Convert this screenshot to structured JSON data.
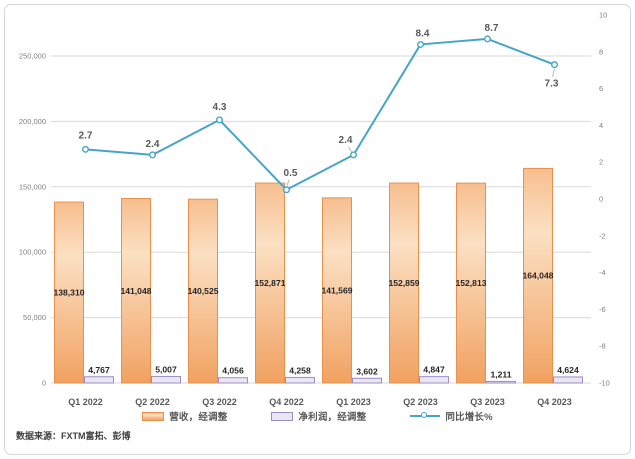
{
  "chart_data": {
    "type": "combo-bar-line",
    "categories": [
      "Q1 2022",
      "Q2 2022",
      "Q3 2022",
      "Q4 2022",
      "Q1 2023",
      "Q2 2023",
      "Q3 2023",
      "Q4 2023"
    ],
    "series": [
      {
        "name": "营收，经调整",
        "type": "bar",
        "axis": "left",
        "values": [
          138310,
          141048,
          140525,
          152871,
          141569,
          152859,
          152813,
          164048
        ],
        "labels": [
          "138,310",
          "141,048",
          "140,525",
          "152,871",
          "141,569",
          "152,859",
          "152,813",
          "164,048"
        ]
      },
      {
        "name": "净利润，经调整",
        "type": "bar",
        "axis": "left",
        "values": [
          4767,
          5007,
          4056,
          4258,
          3602,
          4847,
          1211,
          4624
        ],
        "labels": [
          "4,767",
          "5,007",
          "4,056",
          "4,258",
          "3,602",
          "4,847",
          "1,211",
          "4,624"
        ]
      },
      {
        "name": "同比增长%",
        "type": "line",
        "axis": "right",
        "values": [
          2.7,
          2.4,
          4.3,
          0.5,
          2.4,
          8.4,
          8.7,
          7.3
        ],
        "labels": [
          "2.7",
          "2.4",
          "4.3",
          "0.5",
          "2.4",
          "8.4",
          "8.7",
          "7.3"
        ]
      }
    ],
    "left_axis": {
      "min": 0,
      "max": 250000,
      "major_unit": 50000,
      "tick_labels": [
        "0",
        "50,000",
        "100,000",
        "150,000",
        "200,000",
        "250,000"
      ]
    },
    "right_axis": {
      "min": -10,
      "max": 10,
      "major_unit": 2,
      "tick_labels": [
        "-10",
        "-8",
        "-6",
        "-4",
        "-2",
        "0",
        "2",
        "4",
        "6",
        "8",
        "10"
      ]
    },
    "grid": true,
    "legend_position": "bottom"
  },
  "source_note": "数据来源：FXTM富拓、彭博",
  "colors": {
    "revenue_fill_top": "#F7BE8F",
    "revenue_fill_mid": "#FBE0C3",
    "revenue_fill_bottom": "#F1A161",
    "revenue_border": "#E8914E",
    "profit_fill": "#EBE6F4",
    "profit_border": "#9D8CC2",
    "growth_line": "#46A5C6",
    "gridline": "#D9D9D9",
    "axis_tick_text": "#808080",
    "category_text": "#595959",
    "bar_label_text": "#262626",
    "line_label_text": "#595959"
  }
}
